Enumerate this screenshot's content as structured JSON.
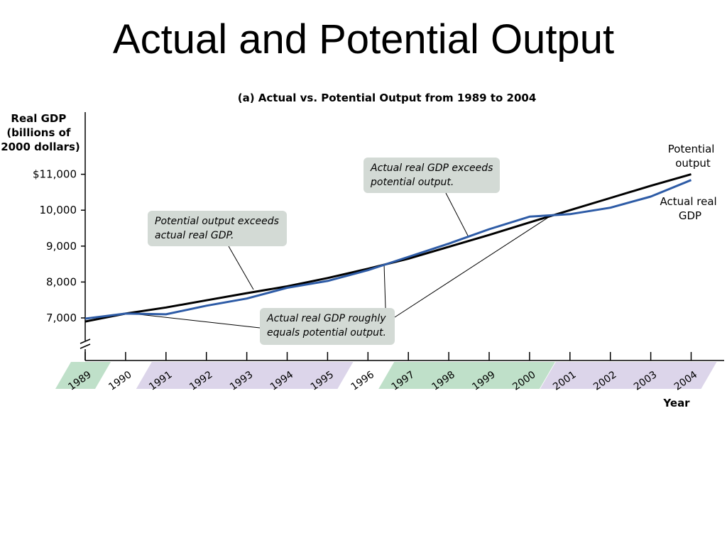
{
  "slide": {
    "title": "Actual and Potential Output"
  },
  "chart_data": {
    "type": "line",
    "title": "(a) Actual vs. Potential Output from 1989 to 2004",
    "ylabel": [
      "Real GDP",
      "(billions of",
      "2000 dollars)"
    ],
    "xlabel": "Year",
    "x": [
      1989,
      1990,
      1991,
      1992,
      1993,
      1994,
      1995,
      1996,
      1997,
      1998,
      1999,
      2000,
      2001,
      2002,
      2003,
      2004
    ],
    "x_tick_labels": [
      "1989",
      "1990",
      "1991",
      "1992",
      "1993",
      "1994",
      "1995",
      "1996",
      "1997",
      "1998",
      "1999",
      "2000",
      "2001",
      "2002",
      "2003",
      "2004"
    ],
    "y_ticks": [
      7000,
      8000,
      9000,
      10000,
      11000
    ],
    "y_tick_labels": [
      "7,000",
      "8,000",
      "9,000",
      "10,000",
      "$11,000"
    ],
    "ylim": [
      6100,
      11800
    ],
    "y_axis_break": true,
    "series": [
      {
        "name": "Potential output",
        "label_lines": [
          "Potential",
          "output"
        ],
        "color": "#000000",
        "values": [
          6900,
          7120,
          7290,
          7490,
          7690,
          7880,
          8110,
          8370,
          8650,
          8980,
          9310,
          9660,
          10000,
          10340,
          10680,
          11000
        ]
      },
      {
        "name": "Actual real GDP",
        "label_lines": [
          "Actual real",
          "GDP"
        ],
        "color": "#2d5ba6",
        "values": [
          6980,
          7120,
          7100,
          7340,
          7540,
          7840,
          8030,
          8330,
          8700,
          9070,
          9470,
          9820,
          9890,
          10070,
          10380,
          10840
        ]
      }
    ],
    "annotations": [
      {
        "lines": [
          "Potential output exceeds",
          "actual real GDP."
        ]
      },
      {
        "lines": [
          "Actual real GDP exceeds",
          "potential output."
        ]
      },
      {
        "lines": [
          "Actual real GDP roughly",
          "equals potential output."
        ]
      }
    ],
    "period_bands": [
      {
        "from": 1989,
        "to": 1989,
        "color": "#bfe0c9"
      },
      {
        "from": 1991,
        "to": 1995,
        "color": "#dcd5ea"
      },
      {
        "from": 1997,
        "to": 2000,
        "color": "#bfe0c9"
      },
      {
        "from": 2001,
        "to": 2004,
        "color": "#dcd5ea"
      }
    ],
    "grid": false,
    "colors": {
      "annotation_bg": "#d3dad5",
      "axis": "#000000"
    }
  }
}
